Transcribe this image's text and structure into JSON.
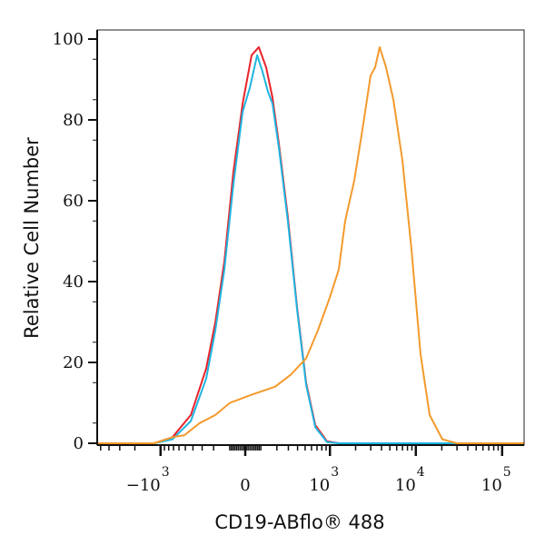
{
  "chart_data": {
    "type": "line",
    "title": "",
    "xlabel": "CD19-ABflo® 488",
    "ylabel": "Relative Cell Number",
    "x_scale": "biexponential",
    "xlim": [
      -5500,
      180000
    ],
    "ylim": [
      0,
      100
    ],
    "grid": false,
    "legend": "none",
    "y_ticks": [
      {
        "value": 0,
        "label": "0"
      },
      {
        "value": 20,
        "label": "20"
      },
      {
        "value": 40,
        "label": "40"
      },
      {
        "value": 60,
        "label": "60"
      },
      {
        "value": 80,
        "label": "80"
      },
      {
        "value": 100,
        "label": "100"
      }
    ],
    "x_ticks": [
      {
        "value": -1000,
        "base": "−10",
        "exp": "3"
      },
      {
        "value": 0,
        "base": "0",
        "exp": ""
      },
      {
        "value": 1000,
        "base": "10",
        "exp": "3"
      },
      {
        "value": 10000,
        "base": "10",
        "exp": "4"
      },
      {
        "value": 100000,
        "base": "10",
        "exp": "5"
      }
    ],
    "series": [
      {
        "color": "#e8232b",
        "x": [
          -5500,
          -1186,
          -720,
          -426,
          -262,
          -187,
          -124,
          -68,
          -15,
          36,
          78,
          124,
          167,
          216,
          295,
          395,
          515,
          667,
          922,
          1272,
          180000
        ],
        "y": [
          0,
          0,
          1.5,
          7,
          18.5,
          30,
          45,
          67,
          84,
          96,
          98,
          93,
          85.5,
          74,
          56,
          33.5,
          15,
          4.5,
          0.5,
          0,
          0
        ]
      },
      {
        "color": "#1fb4e0",
        "x": [
          -5500,
          -1186,
          -720,
          -426,
          -262,
          -187,
          -124,
          -68,
          -15,
          26,
          68,
          100,
          136,
          167,
          216,
          295,
          395,
          515,
          667,
          922,
          1272,
          180000
        ],
        "y": [
          0,
          0,
          1,
          5.5,
          16,
          28,
          43,
          64,
          82,
          88,
          96,
          92,
          87,
          84,
          73,
          55,
          33,
          14.5,
          4,
          0.3,
          0,
          0
        ]
      },
      {
        "color": "#f39a2c",
        "x": [
          -5500,
          -1186,
          -720,
          -515,
          -325,
          -187,
          -89,
          36,
          187,
          325,
          515,
          720,
          994,
          1272,
          1511,
          1930,
          2460,
          2990,
          3375,
          3810,
          4515,
          5490,
          6985,
          8900,
          11350,
          14470,
          20300,
          29950,
          180000
        ],
        "y": [
          0,
          0,
          1.5,
          2,
          5,
          7,
          10,
          12,
          14,
          17,
          21,
          28,
          36,
          43,
          55,
          65,
          79,
          91,
          93,
          98,
          93,
          85,
          70,
          48,
          22,
          7,
          1,
          0,
          0
        ]
      }
    ]
  }
}
